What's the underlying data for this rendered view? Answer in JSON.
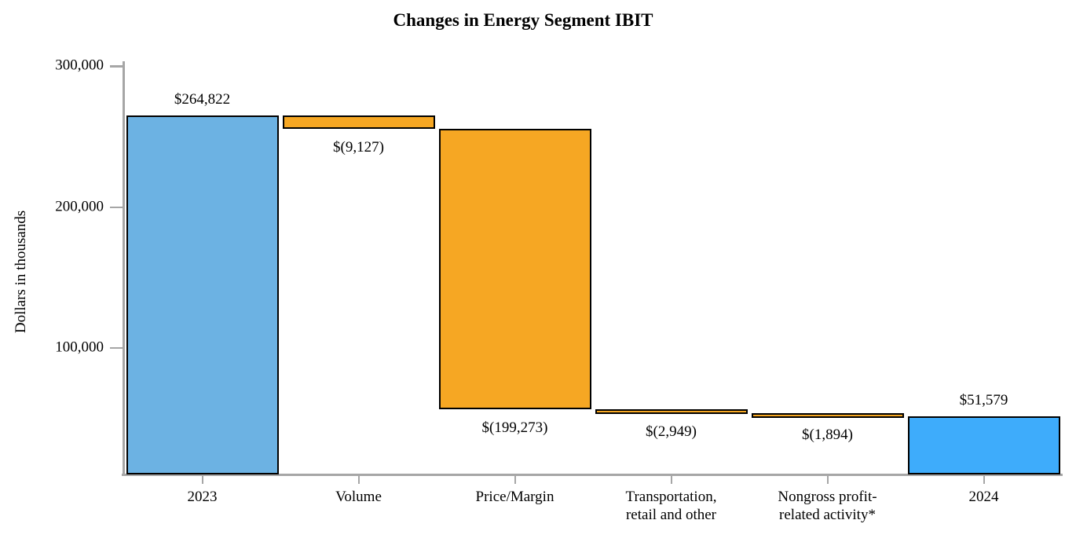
{
  "title": "Changes in Energy Segment IBIT",
  "y_axis": {
    "label": "Dollars in thousands",
    "ticks": [
      {
        "value": 300000,
        "label": "300,000"
      },
      {
        "value": 200000,
        "label": "200,000"
      },
      {
        "value": 100000,
        "label": "100,000"
      }
    ]
  },
  "chart_data": {
    "type": "bar",
    "subtype": "waterfall",
    "title": "Changes in Energy Segment IBIT",
    "xlabel": "",
    "ylabel": "Dollars in thousands",
    "ylim": [
      10000,
      302500
    ],
    "grid": false,
    "legend": false,
    "categories": [
      "2023",
      "Volume",
      "Price/Margin",
      "Transportation, retail and other",
      "Nongross profit-related activity*",
      "2024"
    ],
    "bars": [
      {
        "category_lines": [
          "2023"
        ],
        "value": 264822,
        "value_label": "$264,822",
        "segment_from": 10000,
        "segment_to": 264822,
        "role": "start-total",
        "color": "#6CB2E3",
        "label_position": "above"
      },
      {
        "category_lines": [
          "Volume"
        ],
        "value": -9127,
        "value_label": "$(9,127)",
        "segment_from": 255695,
        "segment_to": 264822,
        "role": "decrease",
        "color": "#F6A723",
        "label_position": "below"
      },
      {
        "category_lines": [
          "Price/Margin"
        ],
        "value": -199273,
        "value_label": "$(199,273)",
        "segment_from": 56422,
        "segment_to": 255695,
        "role": "decrease",
        "color": "#F6A723",
        "label_position": "below"
      },
      {
        "category_lines": [
          "Transportation,",
          "retail and other"
        ],
        "value": -2949,
        "value_label": "$(2,949)",
        "segment_from": 53473,
        "segment_to": 56422,
        "role": "decrease",
        "color": "#F6A723",
        "label_position": "below"
      },
      {
        "category_lines": [
          "Nongross profit-",
          "related activity*"
        ],
        "value": -1894,
        "value_label": "$(1,894)",
        "segment_from": 51579,
        "segment_to": 53473,
        "role": "decrease",
        "color": "#F6A723",
        "label_position": "below"
      },
      {
        "category_lines": [
          "2024"
        ],
        "value": 51579,
        "value_label": "$51,579",
        "segment_from": 10000,
        "segment_to": 51579,
        "role": "end-total",
        "color": "#3EACFB",
        "label_position": "above"
      }
    ]
  },
  "colors": {
    "start_bar": "#6CB2E3",
    "end_bar": "#3EACFB",
    "change_bar": "#F6A723",
    "bar_border": "#000000",
    "axis": "#A6A6A6",
    "text": "#000000",
    "background": "#FFFFFF"
  }
}
